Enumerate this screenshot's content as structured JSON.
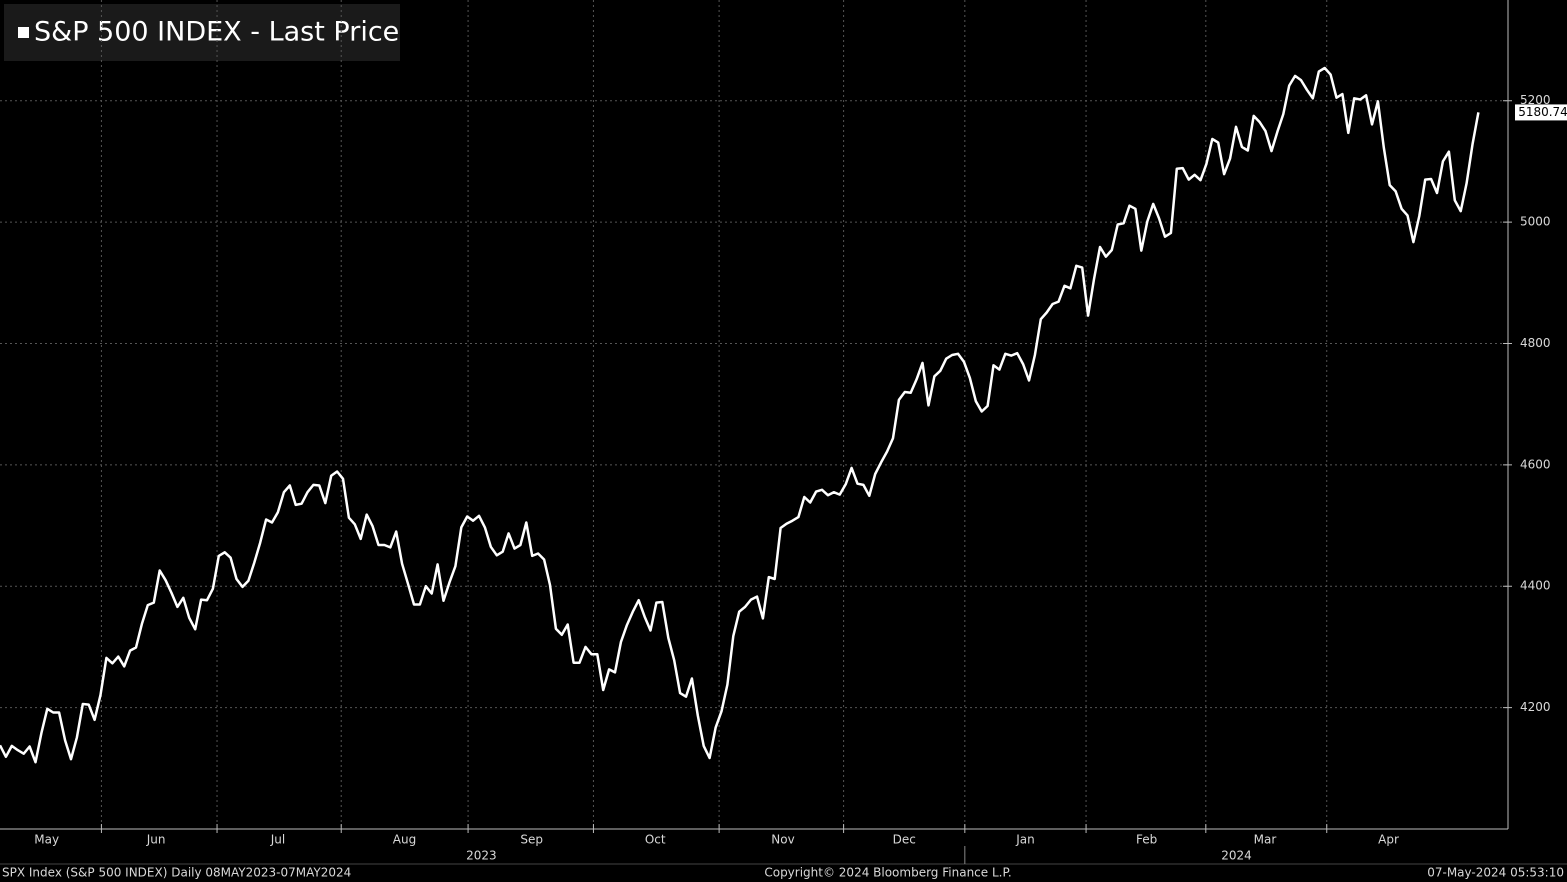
{
  "chart_data": {
    "type": "line",
    "title": "S&P 500 INDEX - Last Price",
    "series": [
      {
        "name": "S&P 500 INDEX - Last Price",
        "color": "#ffffff",
        "values": [
          4138,
          4119,
          4137,
          4130,
          4124,
          4136,
          4110,
          4158,
          4198,
          4192,
          4192,
          4146,
          4115,
          4151,
          4206,
          4205,
          4180,
          4221,
          4282,
          4273,
          4284,
          4268,
          4294,
          4299,
          4338,
          4369,
          4373,
          4426,
          4410,
          4389,
          4366,
          4381,
          4348,
          4329,
          4378,
          4377,
          4396,
          4450,
          4456,
          4447,
          4412,
          4399,
          4409,
          4439,
          4472,
          4510,
          4505,
          4522,
          4555,
          4566,
          4534,
          4536,
          4555,
          4567,
          4566,
          4537,
          4582,
          4589,
          4577,
          4513,
          4502,
          4478,
          4518,
          4499,
          4468,
          4468,
          4464,
          4490,
          4437,
          4404,
          4370,
          4370,
          4400,
          4388,
          4436,
          4376,
          4406,
          4433,
          4497,
          4515,
          4508,
          4516,
          4497,
          4465,
          4451,
          4457,
          4487,
          4462,
          4468,
          4505,
          4450,
          4454,
          4444,
          4402,
          4330,
          4320,
          4337,
          4274,
          4274,
          4300,
          4288,
          4288,
          4229,
          4263,
          4258,
          4308,
          4336,
          4358,
          4377,
          4350,
          4327,
          4373,
          4374,
          4315,
          4278,
          4224,
          4218,
          4248,
          4187,
          4137,
          4117,
          4167,
          4194,
          4238,
          4318,
          4358,
          4366,
          4378,
          4383,
          4347,
          4415,
          4412,
          4496,
          4503,
          4508,
          4514,
          4547,
          4538,
          4556,
          4559,
          4550,
          4555,
          4551,
          4568,
          4595,
          4569,
          4567,
          4549,
          4585,
          4604,
          4622,
          4644,
          4707,
          4720,
          4719,
          4741,
          4768,
          4698,
          4746,
          4755,
          4775,
          4781,
          4783,
          4770,
          4743,
          4705,
          4688,
          4697,
          4764,
          4757,
          4783,
          4780,
          4784,
          4766,
          4739,
          4781,
          4840,
          4851,
          4865,
          4869,
          4895,
          4891,
          4928,
          4925,
          4846,
          4906,
          4959,
          4943,
          4954,
          4996,
          4998,
          5027,
          5022,
          4953,
          5001,
          5030,
          5006,
          4976,
          4982,
          5088,
          5089,
          5070,
          5078,
          5069,
          5096,
          5137,
          5131,
          5079,
          5105,
          5157,
          5124,
          5118,
          5175,
          5165,
          5150,
          5117,
          5149,
          5178,
          5225,
          5241,
          5234,
          5218,
          5204,
          5248,
          5254,
          5243,
          5205,
          5211,
          5147,
          5204,
          5202,
          5209,
          5161,
          5199,
          5123,
          5061,
          5051,
          5022,
          5011,
          4967,
          5010,
          5070,
          5071,
          5048,
          5100,
          5116,
          5036,
          5018,
          5064,
          5128,
          5180.74
        ]
      }
    ],
    "xlim": [
      0,
      255
    ],
    "xticks": [
      {
        "value": 7.9,
        "label": "May"
      },
      {
        "value": 26.4,
        "label": "Jun"
      },
      {
        "value": 47,
        "label": "Jul"
      },
      {
        "value": 68.4,
        "label": "Aug"
      },
      {
        "value": 89.9,
        "label": "Sep"
      },
      {
        "value": 110.8,
        "label": "Oct"
      },
      {
        "value": 132.4,
        "label": "Nov"
      },
      {
        "value": 152.9,
        "label": "Dec"
      },
      {
        "value": 173.4,
        "label": "Jan"
      },
      {
        "value": 193.9,
        "label": "Feb"
      },
      {
        "value": 213.9,
        "label": "Mar"
      },
      {
        "value": 234.8,
        "label": "Apr"
      }
    ],
    "x2ticks": [
      {
        "value": 81.4,
        "label": "2023"
      },
      {
        "value": 209.1,
        "label": "2024"
      }
    ],
    "ylim": [
      4000,
      5366
    ],
    "yticks": [
      4200,
      4400,
      4600,
      4800,
      5000,
      5200
    ],
    "grid": true,
    "last_value_label": "5180.74",
    "footer_left": "SPX Index (S&P 500 INDEX)  Daily 08MAY2023-07MAY2024",
    "footer_center": "Copyright© 2024 Bloomberg Finance L.P.",
    "footer_right": "07-May-2024 05:53:10"
  }
}
